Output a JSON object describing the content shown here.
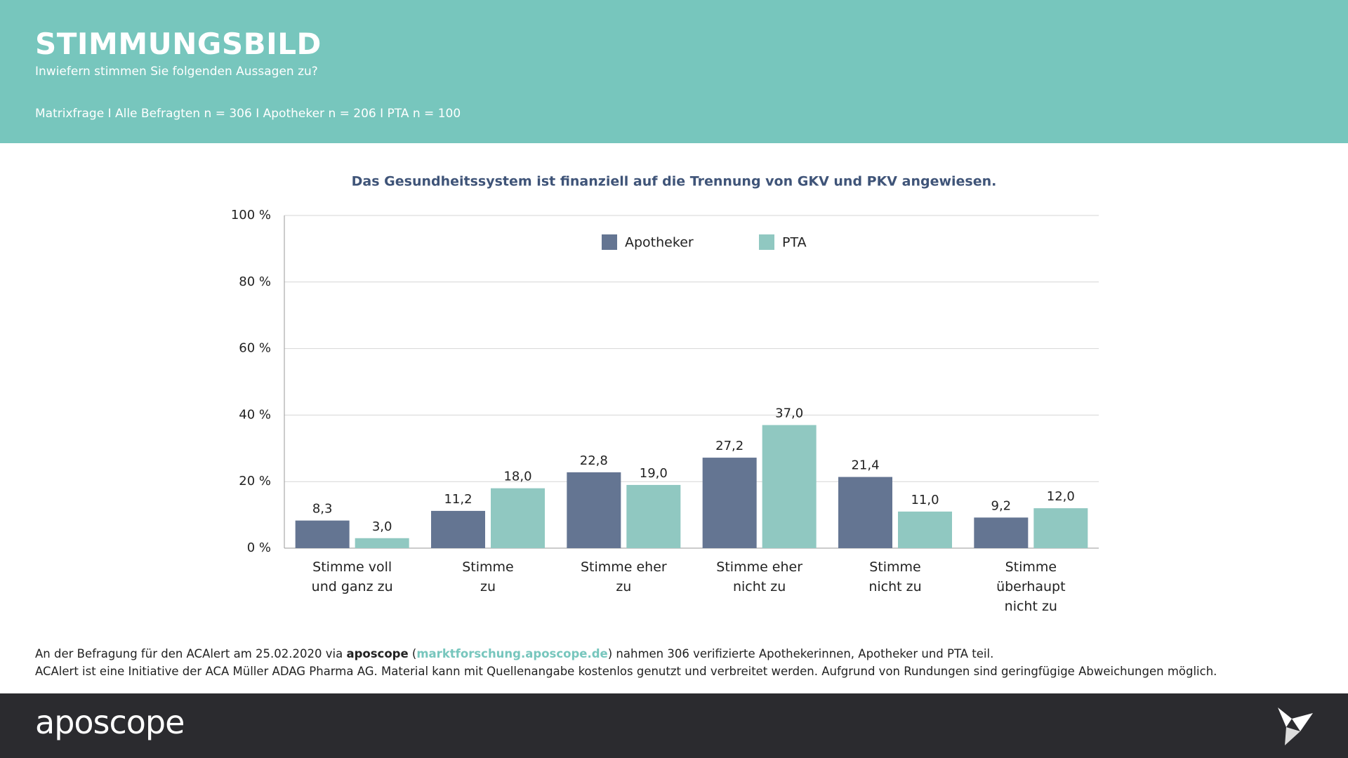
{
  "header": {
    "title": "STIMMUNGSBILD",
    "subtitle": "Inwiefern stimmen Sie folgenden Aussagen zu?",
    "meta": "Matrixfrage I Alle Befragten n = 306 I Apotheker n = 206 I PTA n = 100"
  },
  "chart_data": {
    "type": "bar",
    "title": "Das Gesundheitssystem ist finanziell auf die Trennung von GKV und PKV angewiesen.",
    "categories": [
      "Stimme voll\nund ganz zu",
      "Stimme\nzu",
      "Stimme eher\nzu",
      "Stimme eher\nnicht zu",
      "Stimme\nnicht zu",
      "Stimme\nüberhaupt\nnicht zu"
    ],
    "series": [
      {
        "name": "Apotheker",
        "color": "#647592",
        "values": [
          8.3,
          11.2,
          22.8,
          27.2,
          21.4,
          9.2
        ],
        "value_labels": [
          "8,3",
          "11,2",
          "22,8",
          "27,2",
          "21,4",
          "9,2"
        ]
      },
      {
        "name": "PTA",
        "color": "#90c8c1",
        "values": [
          3.0,
          18.0,
          19.0,
          37.0,
          11.0,
          12.0
        ],
        "value_labels": [
          "3,0",
          "18,0",
          "19,0",
          "37,0",
          "11,0",
          "12,0"
        ]
      }
    ],
    "ylim": [
      0,
      100
    ],
    "yticks": [
      {
        "value": 0,
        "label": "0 %"
      },
      {
        "value": 20,
        "label": "20 %"
      },
      {
        "value": 40,
        "label": "40 %"
      },
      {
        "value": 60,
        "label": "60 %"
      },
      {
        "value": 80,
        "label": "80 %"
      },
      {
        "value": 100,
        "label": "100 %"
      }
    ],
    "grid": true,
    "legend": "top"
  },
  "footer": {
    "note_1": {
      "before": "An der Befragung für den ACAlert am 25.02.2020 via ",
      "brand": "aposcope",
      "open": " (",
      "link": "marktforschung.aposcope.de",
      "after": ") nahmen 306 verifizierte Apothekerinnen, Apotheker und PTA teil."
    },
    "note_2": "ACAlert ist eine Initiative der ACA Müller ADAG Pharma AG. Material kann mit Quellenangabe kostenlos genutzt und verbreitet werden. Aufgrund von Rundungen sind geringfügige Abweichungen möglich.",
    "logo": "aposcope"
  }
}
